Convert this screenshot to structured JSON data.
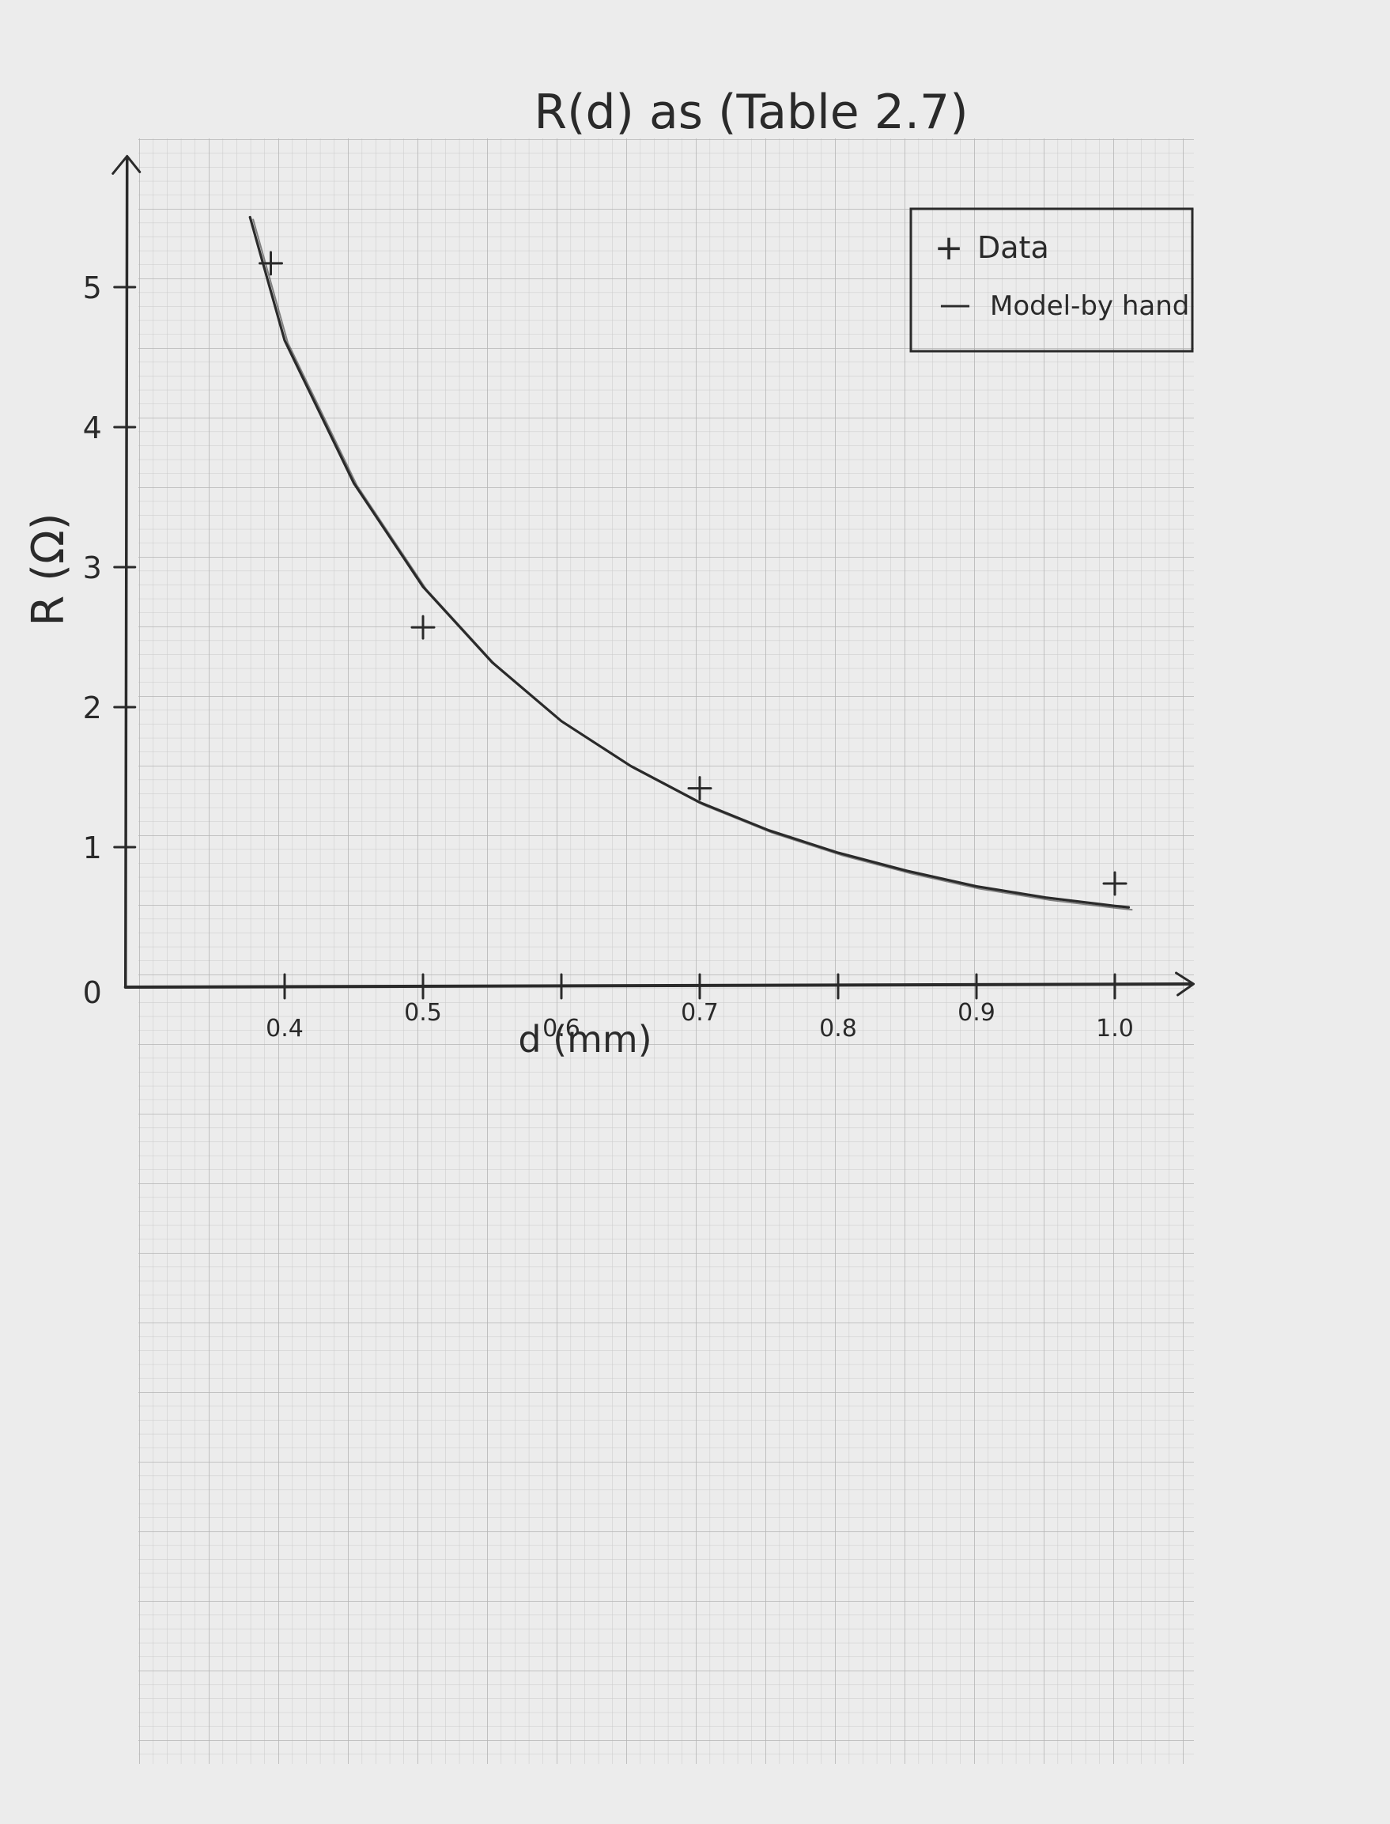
{
  "chart_data": {
    "type": "line",
    "title": "R(d) as (Table 2.7)",
    "xlabel": "d (mm)",
    "ylabel": "R (Ω)",
    "xlim": [
      0.285,
      1.05
    ],
    "ylim": [
      0,
      5.8
    ],
    "x_ticks": [
      {
        "value": 0.4,
        "label": "0.4"
      },
      {
        "value": 0.5,
        "label": "0.5"
      },
      {
        "value": 0.6,
        "label": "0.6"
      },
      {
        "value": 0.7,
        "label": "0.7"
      },
      {
        "value": 0.8,
        "label": "0.8"
      },
      {
        "value": 0.9,
        "label": "0.9"
      },
      {
        "value": 1.0,
        "label": "1.0"
      }
    ],
    "y_ticks": [
      {
        "value": 0,
        "label": "0"
      },
      {
        "value": 1,
        "label": "1"
      },
      {
        "value": 2,
        "label": "2"
      },
      {
        "value": 3,
        "label": "3"
      },
      {
        "value": 4,
        "label": "4"
      },
      {
        "value": 5,
        "label": "5"
      }
    ],
    "grid": true,
    "legend_position": "top-right",
    "series": [
      {
        "name": "Data",
        "kind": "points",
        "marker": "+",
        "x": [
          0.39,
          0.5,
          0.7,
          1.0
        ],
        "y": [
          5.17,
          2.57,
          1.42,
          0.74
        ]
      },
      {
        "name": "Model-by hand",
        "kind": "line",
        "x": [
          0.375,
          0.4,
          0.45,
          0.5,
          0.55,
          0.6,
          0.65,
          0.7,
          0.75,
          0.8,
          0.85,
          0.9,
          0.95,
          1.0,
          1.01
        ],
        "y": [
          5.5,
          4.62,
          3.6,
          2.86,
          2.32,
          1.9,
          1.58,
          1.32,
          1.12,
          0.96,
          0.83,
          0.72,
          0.64,
          0.58,
          0.57
        ]
      }
    ]
  },
  "legend": {
    "data_marker": "+",
    "data_label": "Data",
    "model_marker": "—",
    "model_label": "Model-by hand"
  }
}
